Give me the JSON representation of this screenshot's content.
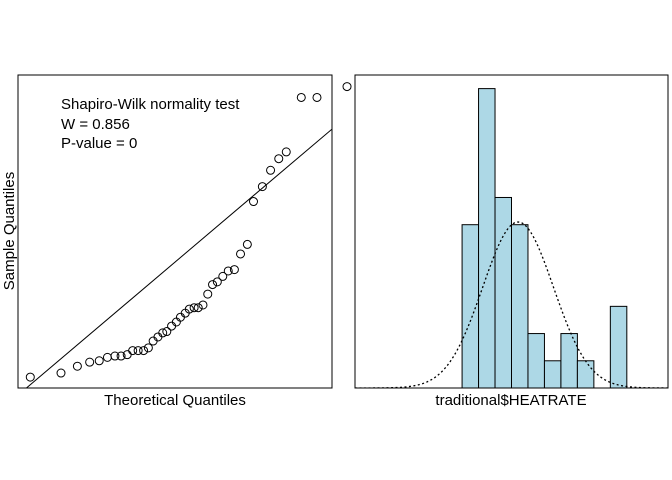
{
  "chart_data": [
    {
      "type": "scatter",
      "subtype": "qq-plot",
      "xlabel": "Theoretical Quantiles",
      "ylabel": "Sample Quantiles",
      "annotation": [
        "Shapiro-Wilk normality test",
        "W = 0.856",
        "P-value = 0"
      ],
      "axes_ticks_shown": false,
      "grid": false,
      "xlim": [
        -2.3,
        2.3
      ],
      "ylim": [
        -2.0,
        2.6
      ],
      "reference_line": {
        "slope": 0.85,
        "intercept": -0.15
      },
      "points": [
        {
          "x": -2.12,
          "y": -1.84
        },
        {
          "x": -1.67,
          "y": -1.78
        },
        {
          "x": -1.43,
          "y": -1.68
        },
        {
          "x": -1.25,
          "y": -1.62
        },
        {
          "x": -1.11,
          "y": -1.6
        },
        {
          "x": -0.99,
          "y": -1.55
        },
        {
          "x": -0.88,
          "y": -1.53
        },
        {
          "x": -0.79,
          "y": -1.53
        },
        {
          "x": -0.7,
          "y": -1.51
        },
        {
          "x": -0.62,
          "y": -1.45
        },
        {
          "x": -0.54,
          "y": -1.45
        },
        {
          "x": -0.46,
          "y": -1.45
        },
        {
          "x": -0.39,
          "y": -1.41
        },
        {
          "x": -0.32,
          "y": -1.31
        },
        {
          "x": -0.25,
          "y": -1.25
        },
        {
          "x": -0.18,
          "y": -1.19
        },
        {
          "x": -0.12,
          "y": -1.17
        },
        {
          "x": -0.05,
          "y": -1.09
        },
        {
          "x": 0.02,
          "y": -1.03
        },
        {
          "x": 0.08,
          "y": -0.96
        },
        {
          "x": 0.15,
          "y": -0.9
        },
        {
          "x": 0.21,
          "y": -0.84
        },
        {
          "x": 0.28,
          "y": -0.82
        },
        {
          "x": 0.34,
          "y": -0.82
        },
        {
          "x": 0.41,
          "y": -0.78
        },
        {
          "x": 0.48,
          "y": -0.62
        },
        {
          "x": 0.55,
          "y": -0.48
        },
        {
          "x": 0.62,
          "y": -0.44
        },
        {
          "x": 0.7,
          "y": -0.36
        },
        {
          "x": 0.78,
          "y": -0.28
        },
        {
          "x": 0.87,
          "y": -0.26
        },
        {
          "x": 0.96,
          "y": -0.03
        },
        {
          "x": 1.06,
          "y": 0.11
        },
        {
          "x": 1.15,
          "y": 0.74
        },
        {
          "x": 1.28,
          "y": 0.96
        },
        {
          "x": 1.4,
          "y": 1.2
        },
        {
          "x": 1.52,
          "y": 1.37
        },
        {
          "x": 1.63,
          "y": 1.47
        },
        {
          "x": 1.85,
          "y": 2.27
        },
        {
          "x": 2.08,
          "y": 2.27
        },
        {
          "x": 2.52,
          "y": 2.43
        }
      ]
    },
    {
      "type": "histogram",
      "xlabel": "traditional$HEATRATE",
      "ylabel": "",
      "axes_ticks_shown": false,
      "grid": false,
      "bar_color": "#add8e6",
      "bar_edge_color": "#000000",
      "curve": "normal density (dotted)",
      "xlim": [
        0,
        19
      ],
      "ylim": [
        0,
        11.5
      ],
      "bins": [
        {
          "start": 6.5,
          "end": 7.5,
          "count": 6
        },
        {
          "start": 7.5,
          "end": 8.5,
          "count": 11
        },
        {
          "start": 8.5,
          "end": 9.5,
          "count": 7
        },
        {
          "start": 9.5,
          "end": 10.5,
          "count": 6
        },
        {
          "start": 10.5,
          "end": 11.5,
          "count": 2
        },
        {
          "start": 11.5,
          "end": 12.5,
          "count": 1
        },
        {
          "start": 12.5,
          "end": 13.5,
          "count": 2
        },
        {
          "start": 13.5,
          "end": 14.5,
          "count": 1
        },
        {
          "start": 14.5,
          "end": 15.5,
          "count": 0
        },
        {
          "start": 15.5,
          "end": 16.5,
          "count": 3
        }
      ],
      "normal_curve": {
        "mean": 9.9,
        "sd": 2.15,
        "peak": 6.1
      }
    }
  ]
}
